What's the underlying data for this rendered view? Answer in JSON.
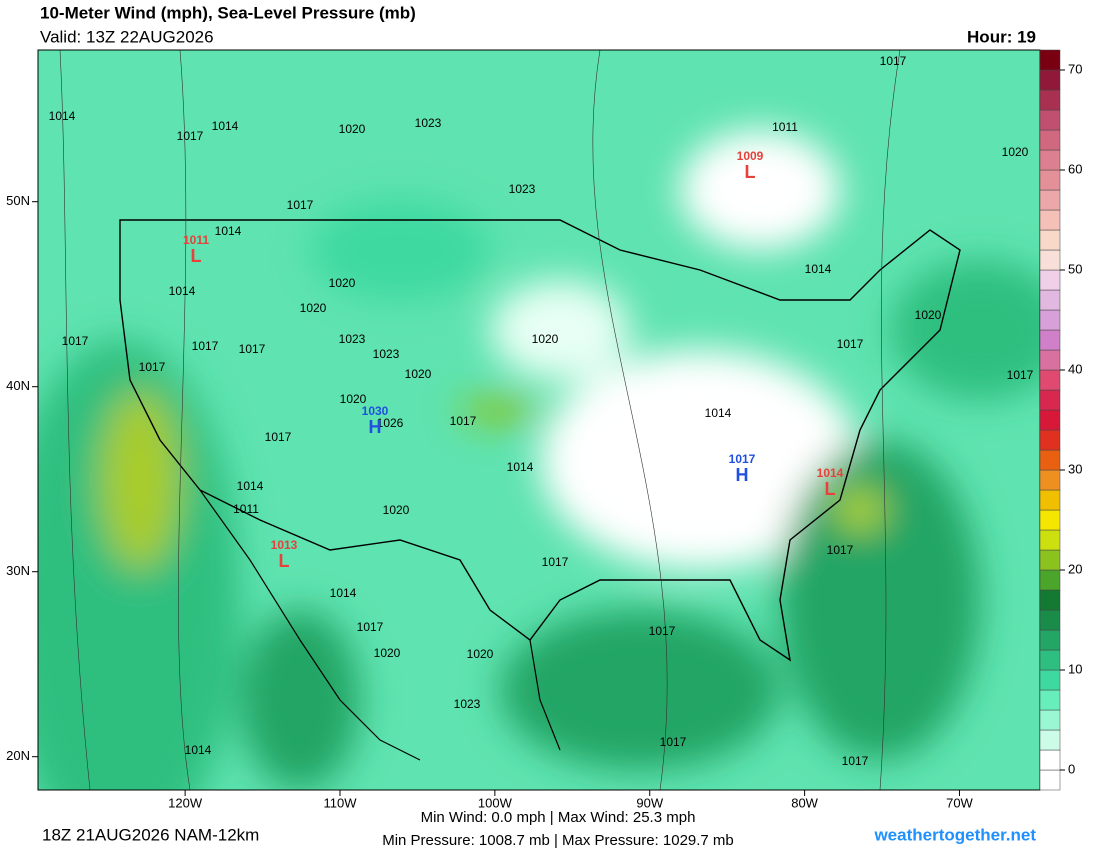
{
  "chart_data": {
    "type": "map",
    "title": "10-Meter Wind (mph), Sea-Level Pressure (mb)",
    "subtitle": "Valid: 13Z 22AUG2026",
    "hour_label": "Hour: 19",
    "xlim": [
      -129.5,
      -64.8
    ],
    "ylim": [
      18.2,
      58.2
    ],
    "xticks": [
      {
        "value": -120,
        "label": "120W"
      },
      {
        "value": -110,
        "label": "110W"
      },
      {
        "value": -100,
        "label": "100W"
      },
      {
        "value": -90,
        "label": "90W"
      },
      {
        "value": -80,
        "label": "80W"
      },
      {
        "value": -70,
        "label": "70W"
      }
    ],
    "yticks": [
      {
        "value": 20,
        "label": "20N"
      },
      {
        "value": 30,
        "label": "30N"
      },
      {
        "value": 40,
        "label": "40N"
      },
      {
        "value": 50,
        "label": "50N"
      }
    ],
    "colorbar": {
      "lim": [
        -2,
        72
      ],
      "ticks": [
        0,
        10,
        20,
        30,
        40,
        50,
        60,
        70
      ],
      "colors": [
        "#ffffff",
        "#ffffff",
        "#ccfce8",
        "#99f7d4",
        "#66eebb",
        "#3dd9a0",
        "#2dbf7f",
        "#22a565",
        "#1a8c4a",
        "#137a33",
        "#4aa52a",
        "#8cc21e",
        "#cce010",
        "#f5e600",
        "#f0c000",
        "#ee9020",
        "#e86010",
        "#e03020",
        "#d81838",
        "#d82850",
        "#e04a70",
        "#d870a0",
        "#d080c8",
        "#d8a0d8",
        "#e0b8e0",
        "#f0d0e8",
        "#f8e0d8",
        "#f8d8c8",
        "#f4c0b8",
        "#eca8a8",
        "#e49098",
        "#dc8090",
        "#d06880",
        "#c05070",
        "#a83050",
        "#901838",
        "#780010"
      ]
    },
    "isobar_labels": [
      "1014",
      "1017",
      "1014",
      "1020",
      "1023",
      "1023",
      "1011",
      "1017",
      "1020",
      "1017",
      "1014",
      "1014",
      "1020",
      "1020",
      "1023",
      "1023",
      "1017",
      "1017",
      "1017",
      "1017",
      "1020",
      "1014",
      "1020",
      "1017",
      "1017",
      "1020",
      "1020",
      "1026",
      "1017",
      "1014",
      "1017",
      "1014",
      "1014",
      "1011",
      "1020",
      "1017",
      "1017",
      "1014",
      "1017",
      "1020",
      "1020",
      "1023",
      "1017",
      "1017",
      "1017",
      "1014"
    ],
    "centers": [
      {
        "letter": "L",
        "value": "1009",
        "color": "#e8403a"
      },
      {
        "letter": "L",
        "value": "1011",
        "color": "#e8403a"
      },
      {
        "letter": "H",
        "value": "1030",
        "color": "#2050e0"
      },
      {
        "letter": "H",
        "value": "1017",
        "color": "#2050e0"
      },
      {
        "letter": "L",
        "value": "1014",
        "color": "#e8403a"
      },
      {
        "letter": "L",
        "value": "1013",
        "color": "#e8403a"
      }
    ],
    "run_label": "18Z 21AUG2026 NAM-12km",
    "wind_stats": "Min Wind:   0.0 mph | Max Wind:  25.3 mph",
    "pressure_stats": "Min Pressure: 1008.7 mb | Max Pressure: 1029.7 mb",
    "credit": "weathertogether.net"
  }
}
